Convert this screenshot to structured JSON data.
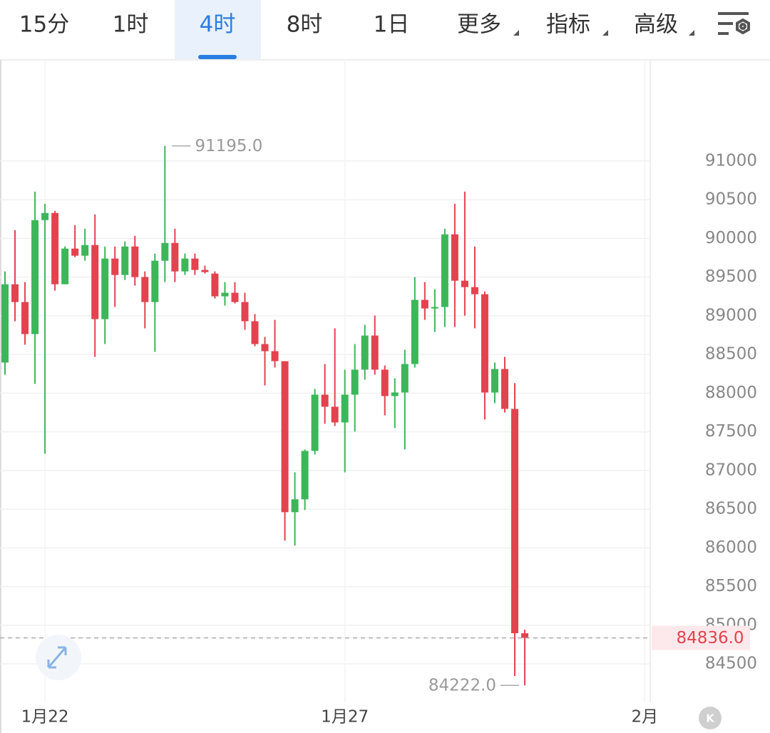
{
  "tabs": [
    "15分",
    "1时",
    "4时",
    "8时",
    "1日",
    "更多",
    "指标",
    "高级"
  ],
  "active_tab": 2,
  "watermark": "K",
  "chart_data": {
    "type": "candlestick",
    "categories": [
      null,
      null,
      null,
      null,
      null,
      null,
      null,
      null,
      null,
      null,
      null,
      null,
      null,
      null,
      null,
      null,
      null,
      null,
      null,
      null,
      null,
      null,
      null,
      null,
      null,
      null,
      null,
      null,
      null,
      null,
      null,
      null,
      null,
      null,
      null,
      null,
      null,
      null,
      null,
      null,
      null,
      null,
      null,
      null,
      null,
      null,
      null,
      null,
      null,
      null,
      null,
      null,
      null
    ],
    "open": [
      88395,
      89407,
      89177,
      88763,
      90236,
      90328,
      89407,
      89868,
      89776,
      89914,
      88956,
      89739,
      89527,
      89895,
      89500,
      89177,
      89711,
      89941,
      89573,
      89739,
      89592,
      89545,
      89251,
      89297,
      89177,
      88929,
      88634,
      88542,
      88413,
      86461,
      86627,
      87253,
      87980,
      87824,
      87621,
      87980,
      88303,
      88744,
      88303,
      87962,
      88008,
      88376,
      89205,
      89094,
      89113,
      90052,
      89453,
      89370,
      89278,
      88008,
      88312,
      87796,
      84896
    ],
    "high": [
      89573,
      90107,
      89435,
      90604,
      90448,
      90356,
      89895,
      90171,
      90125,
      90310,
      89895,
      89895,
      89960,
      90033,
      89573,
      89803,
      91195,
      90125,
      89803,
      89803,
      89647,
      89573,
      89435,
      89435,
      89297,
      89021,
      88726,
      88947,
      88413,
      86977,
      87271,
      88054,
      88376,
      88837,
      88303,
      88634,
      88883,
      89002,
      88358,
      88192,
      88560,
      89499,
      89435,
      89343,
      90125,
      90448,
      90604,
      89895,
      89315,
      88395,
      88468,
      88128,
      84942
    ],
    "low": [
      88238,
      88929,
      88625,
      88119,
      87216,
      89324,
      89407,
      89757,
      89711,
      88468,
      88634,
      89113,
      89463,
      89389,
      88837,
      88533,
      89435,
      89435,
      89527,
      89527,
      89545,
      89223,
      89131,
      89159,
      88818,
      88606,
      88100,
      88330,
      86093,
      86029,
      86489,
      87207,
      87603,
      87575,
      86977,
      87502,
      88174,
      88238,
      87713,
      87548,
      87272,
      88330,
      88947,
      88790,
      88855,
      88855,
      89002,
      88837,
      87658,
      87870,
      87750,
      84344,
      84222
    ],
    "close": [
      89407,
      89177,
      88763,
      90236,
      90328,
      89407,
      89868,
      89776,
      89914,
      88956,
      89739,
      89527,
      89895,
      89500,
      89177,
      89711,
      89941,
      89573,
      89739,
      89592,
      89564,
      89251,
      89297,
      89177,
      88929,
      88634,
      88542,
      88413,
      86461,
      86627,
      87253,
      87980,
      87824,
      87621,
      87980,
      88303,
      88744,
      88303,
      87962,
      88008,
      88376,
      89205,
      89094,
      89113,
      90052,
      89453,
      89370,
      89278,
      88008,
      88312,
      87796,
      84896,
      84836
    ],
    "up_color": "#3db65a",
    "down_color": "#e2434f",
    "ylim": [
      84003,
      92307
    ],
    "yticks": [
      84500,
      85000,
      85500,
      86000,
      86500,
      87000,
      87500,
      88000,
      88500,
      89000,
      89500,
      90000,
      90500,
      91000
    ],
    "xticks": [
      {
        "value": 4,
        "label": "1月22"
      },
      {
        "value": 34,
        "label": "1月27"
      },
      {
        "value": 64,
        "label": "2月"
      }
    ],
    "grid": true,
    "high_label": {
      "value": 91195,
      "label": "91195.0"
    },
    "low_label": {
      "value": 84222,
      "label": "84222.0"
    },
    "last_price": {
      "value": 84836,
      "label": "84836.0"
    }
  }
}
